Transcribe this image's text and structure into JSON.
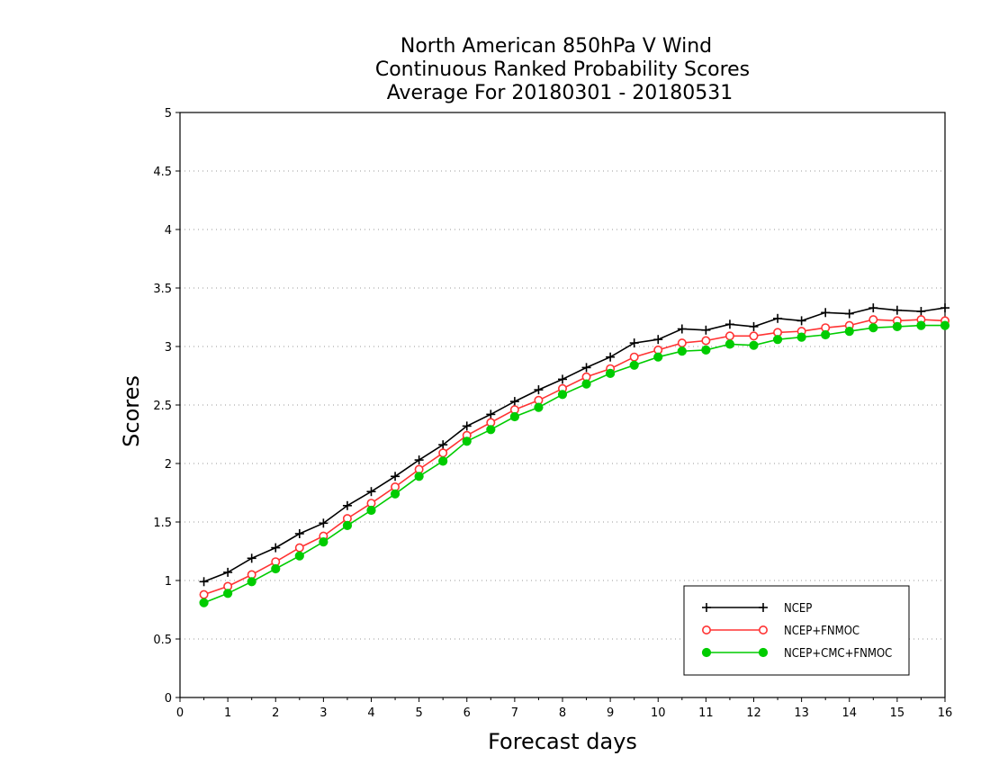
{
  "chart_data": {
    "type": "line",
    "title": [
      "North American 850hPa V Wind",
      "Continuous Ranked Probability Scores",
      "Average For 20180301 - 20180531"
    ],
    "xlabel": "Forecast days",
    "ylabel": "Scores",
    "xlim": [
      0,
      16
    ],
    "ylim": [
      0,
      5
    ],
    "xticks": [
      "0",
      "1",
      "2",
      "3",
      "4",
      "5",
      "6",
      "7",
      "8",
      "9",
      "10",
      "11",
      "12",
      "13",
      "14",
      "15",
      "16"
    ],
    "yticks": [
      "0",
      "0.5",
      "1",
      "1.5",
      "2",
      "2.5",
      "3",
      "3.5",
      "4",
      "4.5",
      "5"
    ],
    "grid": "horizontal dotted",
    "legend_position": "bottom-right",
    "x": [
      0.5,
      1,
      1.5,
      2,
      2.5,
      3,
      3.5,
      4,
      4.5,
      5,
      5.5,
      6,
      6.5,
      7,
      7.5,
      8,
      8.5,
      9,
      9.5,
      10,
      10.5,
      11,
      11.5,
      12,
      12.5,
      13,
      13.5,
      14,
      14.5,
      15,
      15.5,
      16
    ],
    "series": [
      {
        "name": "NCEP",
        "color": "#000000",
        "marker": "plus",
        "values": [
          0.99,
          1.07,
          1.19,
          1.28,
          1.4,
          1.49,
          1.64,
          1.76,
          1.89,
          2.03,
          2.16,
          2.32,
          2.42,
          2.53,
          2.63,
          2.72,
          2.82,
          2.91,
          3.03,
          3.06,
          3.15,
          3.14,
          3.19,
          3.17,
          3.24,
          3.22,
          3.29,
          3.28,
          3.33,
          3.31,
          3.3,
          3.33
        ]
      },
      {
        "name": "NCEP+FNMOC",
        "color": "#ff3333",
        "marker": "open-circle",
        "values": [
          0.88,
          0.95,
          1.05,
          1.16,
          1.28,
          1.38,
          1.53,
          1.66,
          1.8,
          1.95,
          2.09,
          2.24,
          2.35,
          2.46,
          2.54,
          2.64,
          2.74,
          2.81,
          2.91,
          2.97,
          3.03,
          3.05,
          3.09,
          3.09,
          3.12,
          3.13,
          3.16,
          3.18,
          3.23,
          3.22,
          3.23,
          3.22
        ]
      },
      {
        "name": "NCEP+CMC+FNMOC",
        "color": "#00cc00",
        "marker": "filled-circle",
        "values": [
          0.81,
          0.89,
          0.99,
          1.1,
          1.21,
          1.33,
          1.47,
          1.6,
          1.74,
          1.89,
          2.02,
          2.19,
          2.29,
          2.4,
          2.48,
          2.59,
          2.68,
          2.77,
          2.84,
          2.91,
          2.96,
          2.97,
          3.02,
          3.01,
          3.06,
          3.08,
          3.1,
          3.13,
          3.16,
          3.17,
          3.18,
          3.18
        ]
      }
    ]
  }
}
